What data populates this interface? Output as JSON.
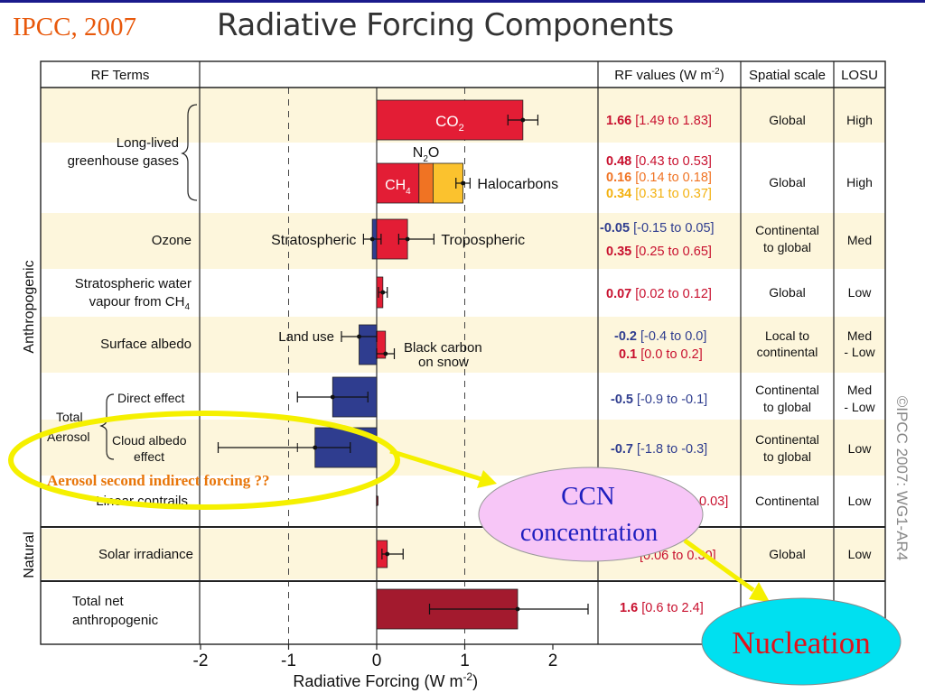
{
  "header": {
    "citation": "IPCC, 2007",
    "title": "Radiative Forcing Components"
  },
  "copyright": "©IPCC 2007: WG1-AR4",
  "table_headers": {
    "rf_terms": "RF Terms",
    "rf_values": "RF values (W m",
    "rf_values_sup": "-2",
    "rf_values_close": ")",
    "spatial_scale": "Spatial scale",
    "losu": "LOSU"
  },
  "group_labels": {
    "anthropogenic": "Anthropogenic",
    "natural": "Natural",
    "total_aerosol": "Total Aerosol"
  },
  "chart_data": {
    "type": "bar",
    "orientation": "horizontal",
    "title": "Radiative Forcing Components",
    "xlabel": "Radiative Forcing  (W m",
    "xlabel_sup": "-2",
    "xlabel_close": ")",
    "xlim": [
      -2,
      2.4
    ],
    "x_ticks": [
      "-2",
      "-1",
      "0",
      "1",
      "2"
    ],
    "x_tick_values": [
      -2,
      -1,
      0,
      1,
      2
    ],
    "gridlines": [
      -1.0,
      1.0
    ],
    "rows": [
      {
        "term_lines": [
          "Long-lived",
          "greenhouse gases"
        ],
        "bars": [
          {
            "label": "CO",
            "label_sub": "2",
            "value": 1.66,
            "low": 1.49,
            "high": 1.83,
            "color": "#e31d35",
            "label_color": "#ffffff"
          },
          {
            "label": "CH",
            "label_sub": "4",
            "value": 0.48,
            "stack_start": 0,
            "color": "#e31d35",
            "label_color": "#ffffff"
          },
          {
            "label": "N",
            "label_sub": "2",
            "label_tail": "O",
            "value": 0.16,
            "stack_start": 0.48,
            "color": "#f07323",
            "label_color": "#000000"
          },
          {
            "label": "Halocarbons",
            "value": 0.34,
            "stack_start": 0.64,
            "color": "#fbc22e",
            "label_color": "#000000",
            "total": 0.98,
            "low": 0.9,
            "high": 1.06
          }
        ],
        "values_text": [
          {
            "bold": "1.66",
            "rest": " [1.49 to 1.83]",
            "color": "#c8102e"
          },
          {
            "bold": "0.48",
            "rest": " [0.43 to 0.53]",
            "color": "#c8102e"
          },
          {
            "bold": "0.16",
            "rest": " [0.14 to 0.18]",
            "color": "#f07323"
          },
          {
            "bold": "0.34",
            "rest": " [0.31 to 0.37]",
            "color": "#f3b10f"
          }
        ],
        "spatial": [
          "Global",
          "Global"
        ],
        "losu": [
          "High",
          "High"
        ]
      },
      {
        "term_lines": [
          "Ozone"
        ],
        "bars": [
          {
            "label": "Stratospheric",
            "value": -0.05,
            "low": -0.15,
            "high": 0.05,
            "color": "#2f3d8f"
          },
          {
            "label": "Tropospheric",
            "value": 0.35,
            "low": 0.25,
            "high": 0.65,
            "color": "#e31d35"
          }
        ],
        "values_text": [
          {
            "bold": "-0.05",
            "rest": " [-0.15 to 0.05]",
            "color": "#2f3d8f"
          },
          {
            "bold": "0.35",
            "rest": " [0.25 to 0.65]",
            "color": "#c8102e"
          }
        ],
        "spatial": [
          "Continental",
          "to global"
        ],
        "losu": [
          "Med"
        ]
      },
      {
        "term_lines": [
          "Stratospheric water",
          "vapour from CH"
        ],
        "term_sub": "4",
        "bars": [
          {
            "value": 0.07,
            "low": 0.02,
            "high": 0.12,
            "color": "#e31d35"
          }
        ],
        "values_text": [
          {
            "bold": "0.07",
            "rest": " [0.02 to 0.12]",
            "color": "#c8102e"
          }
        ],
        "spatial": [
          "Global"
        ],
        "losu": [
          "Low"
        ]
      },
      {
        "term_lines": [
          "Surface albedo"
        ],
        "bars": [
          {
            "label": "Land use",
            "value": -0.2,
            "low": -0.4,
            "high": 0.0,
            "color": "#2f3d8f"
          },
          {
            "label": "Black carbon on snow",
            "value": 0.1,
            "low": 0.0,
            "high": 0.2,
            "color": "#e31d35"
          }
        ],
        "values_text": [
          {
            "bold": "-0.2",
            "rest": " [-0.4 to 0.0]",
            "color": "#2f3d8f"
          },
          {
            "bold": "0.1",
            "rest": " [0.0 to 0.2]",
            "color": "#c8102e"
          }
        ],
        "spatial": [
          "Local to",
          "continental"
        ],
        "losu": [
          "Med",
          "- Low"
        ]
      },
      {
        "term_lines": [
          "Direct effect"
        ],
        "bars": [
          {
            "value": -0.5,
            "low": -0.9,
            "high": -0.1,
            "color": "#2f3d8f"
          }
        ],
        "values_text": [
          {
            "bold": "-0.5",
            "rest": " [-0.9 to -0.1]",
            "color": "#2f3d8f"
          }
        ],
        "spatial": [
          "Continental",
          "to global"
        ],
        "losu": [
          "Med",
          "- Low"
        ]
      },
      {
        "term_lines": [
          "Cloud albedo",
          "effect"
        ],
        "bars": [
          {
            "value": -0.7,
            "low": -1.8,
            "high": -0.3,
            "color": "#2f3d8f"
          }
        ],
        "values_text": [
          {
            "bold": "-0.7",
            "rest": " [-1.8 to -0.3]",
            "color": "#2f3d8f"
          }
        ],
        "spatial": [
          "Continental",
          "to global"
        ],
        "losu": [
          "Low"
        ]
      },
      {
        "term_lines": [
          "Linear contrails"
        ],
        "bars": [
          {
            "value": 0.01,
            "low": 0.003,
            "high": 0.03,
            "color": "#e31d35"
          }
        ],
        "values_text": [
          {
            "bold": "",
            "rest": "0.03]",
            "color": "#c8102e"
          }
        ],
        "spatial": [
          "Continental"
        ],
        "losu": [
          "Low"
        ]
      },
      {
        "term_lines": [
          "Solar irradiance"
        ],
        "bars": [
          {
            "value": 0.12,
            "low": 0.06,
            "high": 0.3,
            "color": "#e31d35"
          }
        ],
        "values_text": [
          {
            "bold": "",
            "rest": "[0.06 to 0.30]",
            "color": "#c8102e"
          }
        ],
        "spatial": [
          "Global"
        ],
        "losu": [
          "Low"
        ]
      },
      {
        "term_lines": [
          "Total net",
          "anthropogenic"
        ],
        "bars": [
          {
            "value": 1.6,
            "low": 0.6,
            "high": 2.4,
            "color": "#a31a2e"
          }
        ],
        "values_text": [
          {
            "bold": "1.6",
            "rest": " [0.6 to 2.4]",
            "color": "#c8102e"
          }
        ],
        "spatial": [],
        "losu": []
      }
    ]
  },
  "annotations": {
    "aerosol_question": "Aerosol second indirect forcing ??",
    "ccn_lines": [
      "CCN",
      "concentration"
    ],
    "nucleation": "Nucleation",
    "colors": {
      "highlight": "#f5f000",
      "ccn_fill": "#f7c6f7",
      "ccn_text": "#1f1fbf",
      "nucl_fill": "#00e0f0",
      "nucl_text": "#e1121b",
      "question_text": "#e8760a"
    }
  }
}
